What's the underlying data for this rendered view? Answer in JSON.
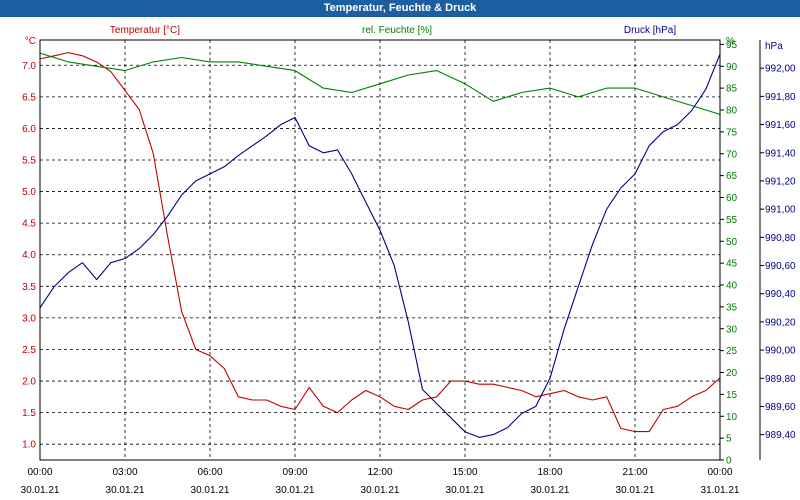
{
  "chart_data": {
    "type": "line",
    "title": "Temperatur, Feuchte & Druck",
    "grid": true,
    "x_ticks": [
      {
        "time": "00:00",
        "date": "30.01.21"
      },
      {
        "time": "03:00",
        "date": "30.01.21"
      },
      {
        "time": "06:00",
        "date": "30.01.21"
      },
      {
        "time": "09:00",
        "date": "30.01.21"
      },
      {
        "time": "12:00",
        "date": "30.01.21"
      },
      {
        "time": "15:00",
        "date": "30.01.21"
      },
      {
        "time": "18:00",
        "date": "30.01.21"
      },
      {
        "time": "21:00",
        "date": "30.01.21"
      },
      {
        "time": "00:00",
        "date": "31.01.21"
      }
    ],
    "x_range": [
      "30.01.21 00:00",
      "31.01.21 00:00"
    ],
    "axes": {
      "temperature": {
        "label": "Temperatur [°C]",
        "unit": "°C",
        "range": [
          0.75,
          7.4
        ],
        "ticks": [
          "1.0",
          "1.5",
          "2.0",
          "2.5",
          "3.0",
          "3.5",
          "4.0",
          "4.5",
          "5.0",
          "5.5",
          "6.0",
          "6.5",
          "7.0"
        ],
        "color": "#c00000"
      },
      "humidity": {
        "label": "rel. Feuchte [%]",
        "unit": "%",
        "range": [
          0,
          96
        ],
        "ticks": [
          "0",
          "5",
          "10",
          "15",
          "20",
          "25",
          "30",
          "35",
          "40",
          "45",
          "50",
          "55",
          "60",
          "65",
          "70",
          "75",
          "80",
          "85",
          "90",
          "95"
        ],
        "color": "#008000"
      },
      "pressure": {
        "label": "Druck [hPa]",
        "unit": "hPa",
        "range": [
          989.22,
          992.2
        ],
        "ticks": [
          "989,40",
          "989,60",
          "989,80",
          "990,00",
          "990,20",
          "990,40",
          "990,60",
          "990,80",
          "991,00",
          "991,20",
          "991,40",
          "991,60",
          "991,80",
          "992,00"
        ],
        "color": "#00008b"
      }
    },
    "series": [
      {
        "name": "Temperatur [°C]",
        "axis": "temperature",
        "color": "#c00000",
        "x": [
          "30.01.21 00:00",
          "30.01.21 00:30",
          "30.01.21 01:00",
          "30.01.21 01:30",
          "30.01.21 02:00",
          "30.01.21 02:30",
          "30.01.21 03:00",
          "30.01.21 03:30",
          "30.01.21 04:00",
          "30.01.21 04:30",
          "30.01.21 05:00",
          "30.01.21 05:30",
          "30.01.21 06:00",
          "30.01.21 06:30",
          "30.01.21 07:00",
          "30.01.21 07:30",
          "30.01.21 08:00",
          "30.01.21 08:30",
          "30.01.21 09:00",
          "30.01.21 09:30",
          "30.01.21 10:00",
          "30.01.21 10:30",
          "30.01.21 11:00",
          "30.01.21 11:30",
          "30.01.21 12:00",
          "30.01.21 12:30",
          "30.01.21 13:00",
          "30.01.21 13:30",
          "30.01.21 14:00",
          "30.01.21 14:30",
          "30.01.21 15:00",
          "30.01.21 15:30",
          "30.01.21 16:00",
          "30.01.21 16:30",
          "30.01.21 17:00",
          "30.01.21 17:30",
          "30.01.21 18:00",
          "30.01.21 18:30",
          "30.01.21 19:00",
          "30.01.21 19:30",
          "30.01.21 20:00",
          "30.01.21 20:30",
          "30.01.21 21:00",
          "30.01.21 21:30",
          "30.01.21 22:00",
          "30.01.21 22:30",
          "30.01.21 23:00",
          "30.01.21 23:30",
          "31.01.21 00:00"
        ],
        "values": [
          7.1,
          7.15,
          7.2,
          7.15,
          7.05,
          6.9,
          6.6,
          6.3,
          5.6,
          4.3,
          3.1,
          2.5,
          2.4,
          2.2,
          1.75,
          1.7,
          1.7,
          1.6,
          1.55,
          1.9,
          1.6,
          1.5,
          1.7,
          1.85,
          1.75,
          1.6,
          1.55,
          1.7,
          1.75,
          2.0,
          2.0,
          1.95,
          1.95,
          1.9,
          1.85,
          1.75,
          1.8,
          1.85,
          1.75,
          1.7,
          1.75,
          1.25,
          1.2,
          1.2,
          1.55,
          1.6,
          1.75,
          1.85,
          2.05
        ]
      },
      {
        "name": "rel. Feuchte [%]",
        "axis": "humidity",
        "color": "#008000",
        "x": [
          "30.01.21 00:00",
          "30.01.21 01:00",
          "30.01.21 02:00",
          "30.01.21 03:00",
          "30.01.21 04:00",
          "30.01.21 05:00",
          "30.01.21 06:00",
          "30.01.21 07:00",
          "30.01.21 08:00",
          "30.01.21 09:00",
          "30.01.21 10:00",
          "30.01.21 11:00",
          "30.01.21 12:00",
          "30.01.21 13:00",
          "30.01.21 14:00",
          "30.01.21 15:00",
          "30.01.21 16:00",
          "30.01.21 17:00",
          "30.01.21 18:00",
          "30.01.21 19:00",
          "30.01.21 20:00",
          "30.01.21 21:00",
          "30.01.21 22:00",
          "30.01.21 23:00",
          "31.01.21 00:00"
        ],
        "values": [
          93,
          91,
          90,
          89,
          91,
          92,
          91,
          91,
          90,
          89,
          85,
          84,
          86,
          88,
          89,
          86,
          82,
          84,
          85,
          83,
          85,
          85,
          83,
          81,
          79
        ]
      },
      {
        "name": "Druck [hPa]",
        "axis": "pressure",
        "color": "#00008b",
        "x": [
          "30.01.21 00:00",
          "30.01.21 00:30",
          "30.01.21 01:00",
          "30.01.21 01:30",
          "30.01.21 02:00",
          "30.01.21 02:30",
          "30.01.21 03:00",
          "30.01.21 03:30",
          "30.01.21 04:00",
          "30.01.21 04:30",
          "30.01.21 05:00",
          "30.01.21 05:30",
          "30.01.21 06:00",
          "30.01.21 06:30",
          "30.01.21 07:00",
          "30.01.21 07:30",
          "30.01.21 08:00",
          "30.01.21 08:30",
          "30.01.21 09:00",
          "30.01.21 09:30",
          "30.01.21 10:00",
          "30.01.21 10:30",
          "30.01.21 11:00",
          "30.01.21 11:30",
          "30.01.21 12:00",
          "30.01.21 12:30",
          "30.01.21 13:00",
          "30.01.21 13:30",
          "30.01.21 14:00",
          "30.01.21 14:30",
          "30.01.21 15:00",
          "30.01.21 15:30",
          "30.01.21 16:00",
          "30.01.21 16:30",
          "30.01.21 17:00",
          "30.01.21 17:30",
          "30.01.21 18:00",
          "30.01.21 18:30",
          "30.01.21 19:00",
          "30.01.21 19:30",
          "30.01.21 20:00",
          "30.01.21 20:30",
          "30.01.21 21:00",
          "30.01.21 21:30",
          "30.01.21 22:00",
          "30.01.21 22:30",
          "30.01.21 23:00",
          "30.01.21 23:30",
          "31.01.21 00:00"
        ],
        "values": [
          990.3,
          990.45,
          990.55,
          990.62,
          990.5,
          990.62,
          990.65,
          990.72,
          990.82,
          990.95,
          991.1,
          991.2,
          991.25,
          991.3,
          991.38,
          991.45,
          991.52,
          991.6,
          991.65,
          991.45,
          991.4,
          991.42,
          991.25,
          991.05,
          990.85,
          990.6,
          990.2,
          989.72,
          989.62,
          989.52,
          989.42,
          989.38,
          989.4,
          989.45,
          989.55,
          989.6,
          989.8,
          990.15,
          990.45,
          990.75,
          991.0,
          991.15,
          991.25,
          991.45,
          991.55,
          991.6,
          991.7,
          991.85,
          992.1
        ]
      }
    ]
  }
}
